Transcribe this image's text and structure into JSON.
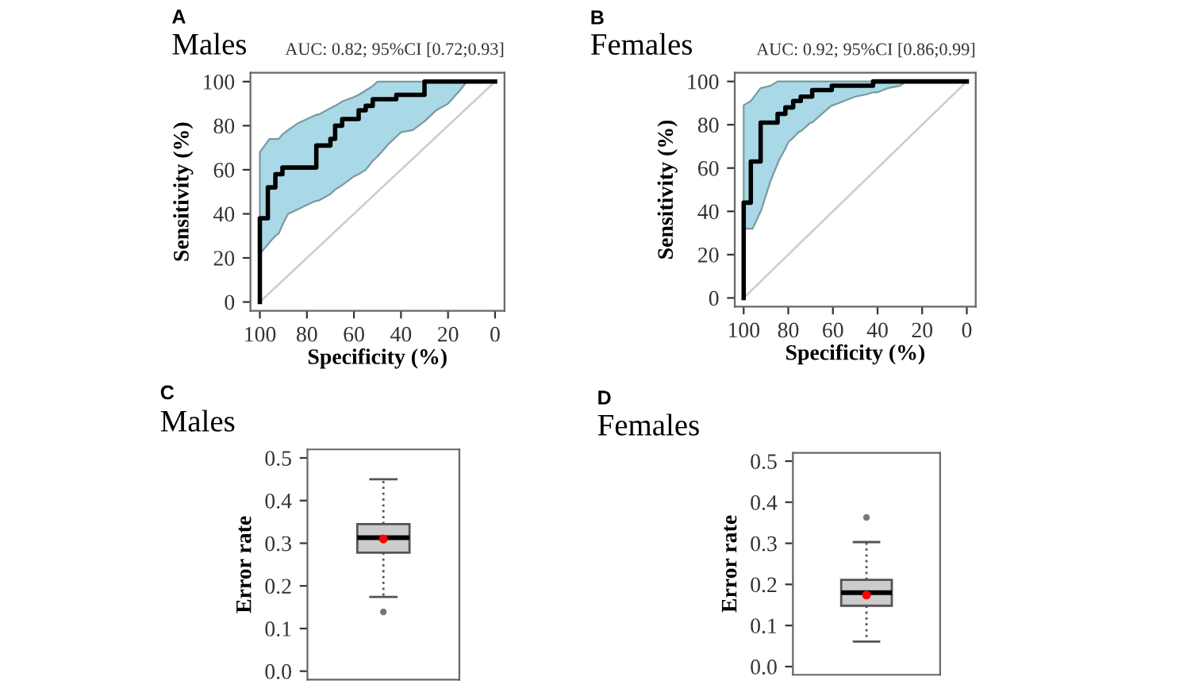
{
  "chart_data": [
    {
      "type": "line",
      "title": "Males",
      "subtitle": "AUC: 0.82; 95%CI [0.72;0.93]",
      "xlabel": "Specificity (%)",
      "ylabel": "Sensitivity (%)",
      "annotations": [
        "A"
      ],
      "xlim": [
        104,
        -4
      ],
      "ylim": [
        -4,
        104
      ],
      "xticks": [
        100,
        80,
        60,
        40,
        20,
        0
      ],
      "yticks": [
        0,
        20,
        40,
        60,
        80,
        100
      ],
      "grid": false,
      "legend": false,
      "series": [
        {
          "type": "line",
          "color": "#cccccc",
          "x": [
            100,
            0
          ],
          "values": [
            0,
            100
          ]
        },
        {
          "type": "line",
          "color": "#000000",
          "x": [
            100,
            100,
            96.6,
            96.6,
            96,
            93.4,
            93.4,
            92,
            90.4,
            90.4,
            88,
            84,
            80,
            76,
            76,
            75,
            70,
            70,
            68,
            68,
            65,
            65,
            60,
            58,
            58,
            55,
            55,
            52,
            52,
            50,
            45,
            42,
            42,
            40,
            35,
            30,
            30,
            25,
            20,
            15,
            12,
            0
          ],
          "values": [
            0,
            38,
            38,
            52,
            52,
            52,
            58,
            58,
            58,
            61,
            61,
            61,
            61,
            61,
            71,
            71,
            71,
            74,
            74,
            80,
            80,
            83,
            83,
            83,
            87,
            87,
            89,
            89,
            92,
            92,
            92,
            92,
            94,
            94,
            94,
            94,
            100,
            100,
            100,
            100,
            100,
            100
          ],
          "lower": [
            22,
            22,
            26,
            26,
            27,
            30,
            30,
            31,
            35,
            35,
            40,
            42,
            44,
            46,
            46,
            46,
            49,
            49,
            51,
            51,
            53,
            53,
            57,
            58,
            58,
            60,
            60,
            64,
            64,
            66,
            72,
            75,
            75,
            77,
            78,
            82,
            82,
            87,
            90,
            96,
            100,
            100
          ],
          "upper": [
            68,
            68,
            73,
            73,
            74,
            74,
            74,
            74,
            76,
            76,
            78,
            81,
            83,
            85,
            85,
            85,
            88,
            88,
            89,
            89,
            91,
            91,
            93,
            94,
            94,
            96,
            96,
            98,
            98,
            100,
            100,
            100,
            100,
            100,
            100,
            100,
            100,
            100,
            100,
            100,
            100,
            100
          ]
        }
      ]
    },
    {
      "type": "line",
      "title": "Females",
      "subtitle": "AUC: 0.92; 95%CI [0.86;0.99]",
      "xlabel": "Specificity (%)",
      "ylabel": "Sensitivity (%)",
      "annotations": [
        "B"
      ],
      "xlim": [
        104,
        -4
      ],
      "ylim": [
        -4,
        104
      ],
      "xticks": [
        100,
        80,
        60,
        40,
        20,
        0
      ],
      "yticks": [
        0,
        20,
        40,
        60,
        80,
        100
      ],
      "grid": false,
      "legend": false,
      "series": [
        {
          "type": "line",
          "color": "#cccccc",
          "x": [
            100,
            0
          ],
          "values": [
            0,
            100
          ]
        },
        {
          "type": "line",
          "color": "#000000",
          "x": [
            100,
            100,
            96.8,
            96.8,
            96,
            92.4,
            92.4,
            92,
            88,
            84.8,
            84.8,
            84,
            81.3,
            81.3,
            80,
            77.8,
            77.8,
            75,
            74.4,
            74.4,
            70,
            69.3,
            69.3,
            65,
            60.5,
            60.5,
            60,
            55,
            50,
            45,
            42,
            42,
            40,
            35,
            30,
            27,
            0
          ],
          "values": [
            0,
            44,
            44,
            63,
            63,
            63,
            81,
            81,
            81,
            81,
            85,
            85,
            85,
            88,
            88,
            88,
            91,
            91,
            91,
            93,
            93,
            93,
            96,
            96,
            96,
            98,
            98,
            98,
            98,
            98,
            98,
            100,
            100,
            100,
            100,
            100,
            100
          ],
          "lower": [
            32,
            32,
            32,
            32,
            32,
            40,
            40,
            41,
            54,
            62,
            62,
            64,
            69,
            69,
            72,
            74,
            74,
            77,
            77,
            77,
            81,
            81,
            81,
            85,
            89,
            89,
            89,
            91,
            93,
            94,
            95,
            95,
            95,
            97,
            98,
            100,
            100
          ],
          "upper": [
            89,
            89,
            91,
            91,
            92,
            97,
            97,
            97,
            98,
            100,
            100,
            100,
            100,
            100,
            100,
            100,
            100,
            100,
            100,
            100,
            100,
            100,
            100,
            100,
            100,
            100,
            100,
            100,
            100,
            100,
            100,
            100,
            100,
            100,
            100,
            100,
            100
          ]
        }
      ]
    },
    {
      "type": "box",
      "title": "Males",
      "ylabel": "Error rate",
      "annotations": [
        "C"
      ],
      "categories": [
        null
      ],
      "tick_labels": "y",
      "color": "#cccccc",
      "ylim": [
        -0.02,
        0.52
      ],
      "yticks": [
        {
          "value": 0,
          "label": "0.0"
        },
        0.1,
        0.2,
        0.3,
        0.4,
        0.5
      ],
      "grid": false,
      "legend": false,
      "boxes": [
        {
          "low": 0.174,
          "q1": 0.278,
          "median": 0.313,
          "q3": 0.345,
          "high": 0.45,
          "mean": 0.31,
          "outliers": [
            0.139
          ]
        }
      ]
    },
    {
      "type": "box",
      "title": "Females",
      "ylabel": "Error rate",
      "annotations": [
        "D"
      ],
      "categories": [
        null
      ],
      "tick_labels": "y",
      "color": "#cccccc",
      "ylim": [
        -0.02,
        0.52
      ],
      "yticks": [
        {
          "value": 0,
          "label": "0.0"
        },
        0.1,
        0.2,
        0.3,
        0.4,
        0.5
      ],
      "grid": false,
      "legend": false,
      "boxes": [
        {
          "low": 0.061,
          "q1": 0.148,
          "median": 0.18,
          "q3": 0.211,
          "high": 0.303,
          "mean": 0.174,
          "outliers": [
            0.363
          ]
        }
      ]
    }
  ]
}
